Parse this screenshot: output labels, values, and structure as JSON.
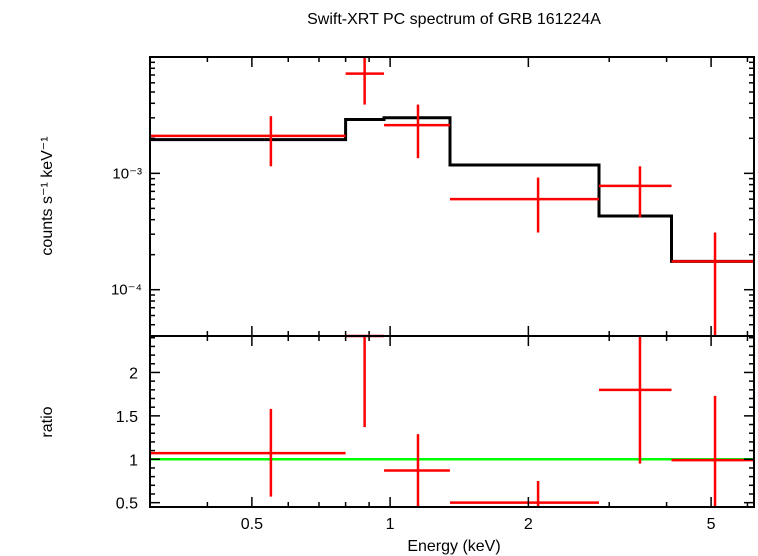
{
  "chart_data": [
    {
      "type": "scatter",
      "panel": "top",
      "title": "Swift-XRT PC spectrum of GRB 161224A",
      "xlabel": "",
      "ylabel": "counts s⁻¹ keV⁻¹",
      "x_scale": "log",
      "y_scale": "log",
      "xlim": [
        0.3,
        6.2
      ],
      "ylim": [
        4e-05,
        0.01
      ],
      "y_ticks": [
        {
          "value": 0.001,
          "label": "10⁻³"
        },
        {
          "value": 0.0001,
          "label": "10⁻⁴"
        }
      ],
      "grid": false,
      "series": [
        {
          "kind": "data",
          "color": "#ff0000",
          "points": [
            {
              "x": 0.55,
              "xlo": 0.3,
              "xhi": 0.8,
              "y": 0.0021,
              "ylo": 0.00115,
              "yhi": 0.0031
            },
            {
              "x": 0.88,
              "xlo": 0.8,
              "xhi": 0.97,
              "y": 0.0072,
              "ylo": 0.0039,
              "yhi": 0.0098
            },
            {
              "x": 1.15,
              "xlo": 0.97,
              "xhi": 1.35,
              "y": 0.0026,
              "ylo": 0.00135,
              "yhi": 0.0039
            },
            {
              "x": 2.1,
              "xlo": 1.35,
              "xhi": 2.85,
              "y": 0.0006,
              "ylo": 0.00031,
              "yhi": 0.00092
            },
            {
              "x": 3.5,
              "xlo": 2.85,
              "xhi": 4.1,
              "y": 0.00078,
              "ylo": 0.00042,
              "yhi": 0.00115
            },
            {
              "x": 5.1,
              "xlo": 4.1,
              "xhi": 6.2,
              "y": 0.000175,
              "ylo": 4e-05,
              "yhi": 0.00031
            }
          ]
        },
        {
          "kind": "model",
          "color": "#000000",
          "steps": [
            {
              "xlo": 0.3,
              "xhi": 0.8,
              "y": 0.00195
            },
            {
              "xlo": 0.8,
              "xhi": 0.97,
              "y": 0.0029
            },
            {
              "xlo": 0.97,
              "xhi": 1.35,
              "y": 0.003
            },
            {
              "xlo": 1.35,
              "xhi": 2.85,
              "y": 0.00118
            },
            {
              "xlo": 2.85,
              "xhi": 4.1,
              "y": 0.00043
            },
            {
              "xlo": 4.1,
              "xhi": 6.2,
              "y": 0.000175
            }
          ]
        }
      ]
    },
    {
      "type": "scatter",
      "panel": "bottom",
      "xlabel": "Energy (keV)",
      "ylabel": "ratio",
      "x_scale": "log",
      "y_scale": "linear",
      "xlim": [
        0.3,
        6.2
      ],
      "ylim": [
        0.45,
        2.42
      ],
      "x_ticks": [
        {
          "value": 0.5,
          "label": "0.5"
        },
        {
          "value": 1,
          "label": "1"
        },
        {
          "value": 2,
          "label": "2"
        },
        {
          "value": 5,
          "label": "5"
        }
      ],
      "y_ticks": [
        {
          "value": 0.5,
          "label": "0.5"
        },
        {
          "value": 1,
          "label": "1"
        },
        {
          "value": 1.5,
          "label": "1.5"
        },
        {
          "value": 2,
          "label": "2"
        }
      ],
      "grid": false,
      "reference_line": {
        "y": 1,
        "color": "#00ff00"
      },
      "series": [
        {
          "kind": "ratio",
          "color": "#ff0000",
          "points": [
            {
              "x": 0.55,
              "xlo": 0.3,
              "xhi": 0.8,
              "y": 1.07,
              "ylo": 0.57,
              "yhi": 1.58
            },
            {
              "x": 0.88,
              "xlo": 0.8,
              "xhi": 0.97,
              "y": 2.42,
              "ylo": 1.37,
              "yhi": 2.42
            },
            {
              "x": 1.15,
              "xlo": 0.97,
              "xhi": 1.35,
              "y": 0.87,
              "ylo": 0.45,
              "yhi": 1.29
            },
            {
              "x": 2.1,
              "xlo": 1.35,
              "xhi": 2.85,
              "y": 0.5,
              "ylo": 0.45,
              "yhi": 0.75
            },
            {
              "x": 3.5,
              "xlo": 2.85,
              "xhi": 4.1,
              "y": 1.8,
              "ylo": 0.95,
              "yhi": 2.42
            },
            {
              "x": 5.1,
              "xlo": 4.1,
              "xhi": 6.2,
              "y": 0.99,
              "ylo": 0.45,
              "yhi": 1.73
            }
          ]
        }
      ]
    }
  ]
}
